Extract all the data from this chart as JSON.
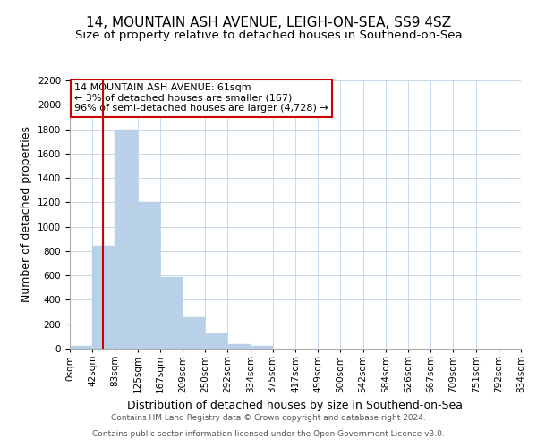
{
  "title": "14, MOUNTAIN ASH AVENUE, LEIGH-ON-SEA, SS9 4SZ",
  "subtitle": "Size of property relative to detached houses in Southend-on-Sea",
  "xlabel": "Distribution of detached houses by size in Southend-on-Sea",
  "ylabel": "Number of detached properties",
  "bin_edges": [
    0,
    42,
    83,
    125,
    167,
    209,
    250,
    292,
    334,
    375,
    417,
    459,
    500,
    542,
    584,
    626,
    667,
    709,
    751,
    792,
    834
  ],
  "bar_heights": [
    20,
    840,
    1800,
    1200,
    590,
    255,
    125,
    40,
    20,
    0,
    0,
    0,
    0,
    0,
    0,
    0,
    0,
    0,
    0,
    0
  ],
  "bar_color": "#b8d0e8",
  "bar_edgecolor": "#b8d0e8",
  "property_line_x": 61,
  "property_line_color": "#cc0000",
  "ylim": [
    0,
    2200
  ],
  "yticks": [
    0,
    200,
    400,
    600,
    800,
    1000,
    1200,
    1400,
    1600,
    1800,
    2000,
    2200
  ],
  "xtick_labels": [
    "0sqm",
    "42sqm",
    "83sqm",
    "125sqm",
    "167sqm",
    "209sqm",
    "250sqm",
    "292sqm",
    "334sqm",
    "375sqm",
    "417sqm",
    "459sqm",
    "500sqm",
    "542sqm",
    "584sqm",
    "626sqm",
    "667sqm",
    "709sqm",
    "751sqm",
    "792sqm",
    "834sqm"
  ],
  "annotation_text": "14 MOUNTAIN ASH AVENUE: 61sqm\n← 3% of detached houses are smaller (167)\n96% of semi-detached houses are larger (4,728) →",
  "annotation_box_edgecolor": "#cc0000",
  "footer_line1": "Contains HM Land Registry data © Crown copyright and database right 2024.",
  "footer_line2": "Contains public sector information licensed under the Open Government Licence v3.0.",
  "background_color": "#ffffff",
  "grid_color": "#c8d8ec",
  "title_fontsize": 11,
  "subtitle_fontsize": 9.5,
  "axis_label_fontsize": 9,
  "tick_fontsize": 7.5,
  "annotation_fontsize": 8,
  "footer_fontsize": 6.5
}
